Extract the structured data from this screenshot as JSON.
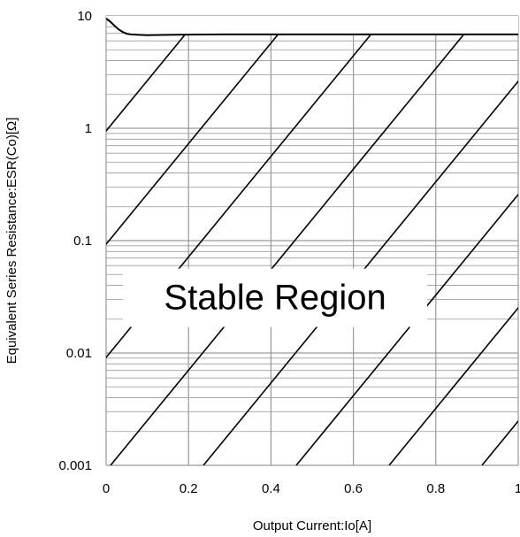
{
  "chart_data": {
    "type": "line",
    "title": "",
    "xlabel": "Output Current:Io[A]",
    "ylabel": "Equivalent Series Resistance:ESR(Co)[Ω]",
    "xlim": [
      0,
      1
    ],
    "ylim": [
      0.001,
      10
    ],
    "yscale": "log",
    "grid": true,
    "x_ticks": [
      0,
      0.2,
      0.4,
      0.6,
      0.8,
      1
    ],
    "x_tick_labels": [
      "0",
      "0.2",
      "0.4",
      "0.6",
      "0.8",
      "1"
    ],
    "y_ticks": [
      0.001,
      0.01,
      0.1,
      1,
      10
    ],
    "y_tick_labels": [
      "0.001",
      "0.01",
      "0.1",
      "1",
      "10"
    ],
    "series": [
      {
        "x": [
          0,
          0.01,
          0.02,
          0.03,
          0.04,
          0.05,
          0.06,
          0.08,
          0.1,
          0.15,
          0.2,
          0.3,
          0.5,
          0.7,
          1.0
        ],
        "y": [
          9.5,
          8.9,
          8.2,
          7.6,
          7.2,
          6.95,
          6.85,
          6.78,
          6.75,
          6.78,
          6.82,
          6.85,
          6.85,
          6.85,
          6.85
        ]
      }
    ],
    "annotations": [
      {
        "text": "Stable Region",
        "x": 0.41,
        "y": 0.031
      }
    ],
    "hatch_label": "",
    "hatch_region": "above the ESR limit curve",
    "colors": {
      "line": "#000000",
      "grid": "#9a9a9a",
      "background": "#ffffff"
    }
  }
}
